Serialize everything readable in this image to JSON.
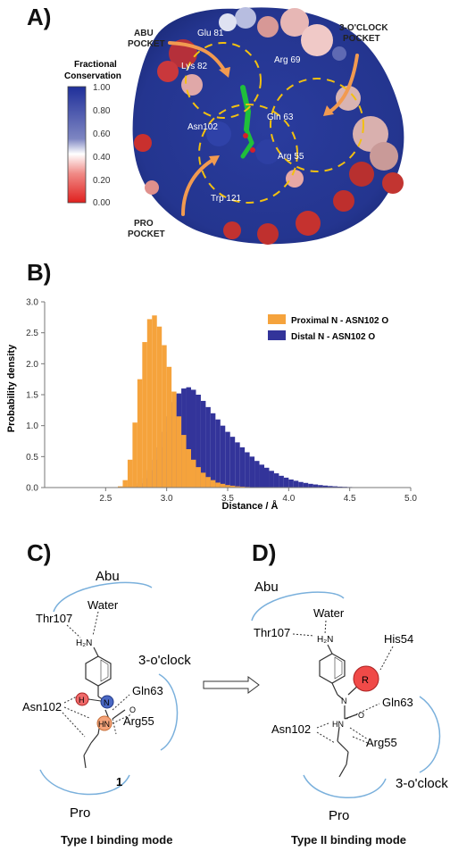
{
  "panels": {
    "A": {
      "label": "A)",
      "colorbar": {
        "title_line1": "Fractional",
        "title_line2": "Conservation",
        "ticks": [
          "1.00",
          "0.80",
          "0.60",
          "0.40",
          "0.20",
          "0.00"
        ],
        "top_color": "#1f2f9a",
        "mid_color": "#ffffff",
        "bottom_color": "#e0201e"
      },
      "pocket_labels": {
        "abu_1": "ABU",
        "abu_2": "POCKET",
        "clock_1": "3-O'CLOCK",
        "clock_2": "POCKET",
        "pro_1": "PRO",
        "pro_2": "POCKET"
      },
      "residues": {
        "glu81": "Glu 81",
        "lys82": "Lys 82",
        "arg69": "Arg 69",
        "gln63": "Gln 63",
        "asn102": "Asn102",
        "arg55": "Arg 55",
        "trp121": "Trp 121"
      }
    },
    "B": {
      "label": "B)",
      "ylabel": "Probability density",
      "xlabel": "Distance / Å",
      "legend_1": "Proximal N - ASN102 O",
      "legend_2": "Distal N - ASN102 O",
      "xticks": [
        "2.5",
        "3.0",
        "3.5",
        "4.0",
        "4.5",
        "5.0"
      ],
      "yticks": [
        "0.0",
        "0.5",
        "1.0",
        "1.5",
        "2.0",
        "2.5",
        "3.0"
      ]
    },
    "C": {
      "label": "C)",
      "abu": "Abu",
      "water": "Water",
      "thr107": "Thr107",
      "h2n": "H₂N",
      "clock": "3-o'clock",
      "h_atom": "H",
      "n_atom": "N",
      "hn": "HN",
      "o_atom": "O",
      "gln63": "Gln63",
      "asn102": "Asn102",
      "arg55": "Arg55",
      "pro": "Pro",
      "compound": "1",
      "caption": "Type I binding mode"
    },
    "D": {
      "label": "D)",
      "abu": "Abu",
      "water": "Water",
      "thr107": "Thr107",
      "h2n": "H₂N",
      "his54": "His54",
      "r_atom": "R",
      "n_atom": "N",
      "hn": "HN",
      "o_atom": "O",
      "gln63": "Gln63",
      "asn102": "Asn102",
      "arg55": "Arg55",
      "clock": "3-o'clock",
      "pro": "Pro",
      "caption": "Type II binding mode"
    }
  },
  "chart_data": {
    "type": "bar",
    "xlabel": "Distance / Å",
    "ylabel": "Probability density",
    "xlim": [
      2.0,
      5.0
    ],
    "ylim": [
      0.0,
      3.0
    ],
    "bin_width": 0.04,
    "legend": "top-right",
    "series": [
      {
        "name": "Proximal N - ASN102 O",
        "color": "#f5a33c",
        "x": [
          2.62,
          2.66,
          2.7,
          2.74,
          2.78,
          2.82,
          2.86,
          2.9,
          2.94,
          2.98,
          3.02,
          3.06,
          3.1,
          3.14,
          3.18,
          3.22,
          3.26,
          3.3,
          3.34,
          3.38,
          3.42,
          3.46,
          3.5,
          3.54,
          3.58,
          3.62,
          3.66,
          3.7
        ],
        "values": [
          0.02,
          0.12,
          0.45,
          1.05,
          1.75,
          2.35,
          2.72,
          2.78,
          2.6,
          2.3,
          1.95,
          1.55,
          1.15,
          0.85,
          0.62,
          0.45,
          0.33,
          0.24,
          0.17,
          0.12,
          0.08,
          0.06,
          0.04,
          0.03,
          0.02,
          0.015,
          0.01,
          0.005
        ]
      },
      {
        "name": "Distal N - ASN102 O",
        "color": "#33349a",
        "x": [
          2.7,
          2.74,
          2.78,
          2.82,
          2.86,
          2.9,
          2.94,
          2.98,
          3.02,
          3.06,
          3.1,
          3.14,
          3.18,
          3.22,
          3.26,
          3.3,
          3.34,
          3.38,
          3.42,
          3.46,
          3.5,
          3.54,
          3.58,
          3.62,
          3.66,
          3.7,
          3.74,
          3.78,
          3.82,
          3.86,
          3.9,
          3.94,
          3.98,
          4.02,
          4.06,
          4.1,
          4.14,
          4.18,
          4.22,
          4.26,
          4.3,
          4.34,
          4.38,
          4.42,
          4.46,
          4.5,
          4.54,
          4.58,
          4.62,
          4.66,
          4.7,
          4.74
        ],
        "values": [
          0.01,
          0.03,
          0.07,
          0.15,
          0.28,
          0.45,
          0.65,
          0.9,
          1.15,
          1.38,
          1.52,
          1.6,
          1.62,
          1.58,
          1.5,
          1.4,
          1.3,
          1.2,
          1.1,
          1.0,
          0.9,
          0.82,
          0.73,
          0.65,
          0.57,
          0.5,
          0.43,
          0.37,
          0.32,
          0.27,
          0.23,
          0.19,
          0.16,
          0.13,
          0.11,
          0.09,
          0.075,
          0.06,
          0.05,
          0.04,
          0.032,
          0.025,
          0.02,
          0.015,
          0.012,
          0.009,
          0.007,
          0.005,
          0.004,
          0.003,
          0.002,
          0.001
        ]
      }
    ]
  }
}
